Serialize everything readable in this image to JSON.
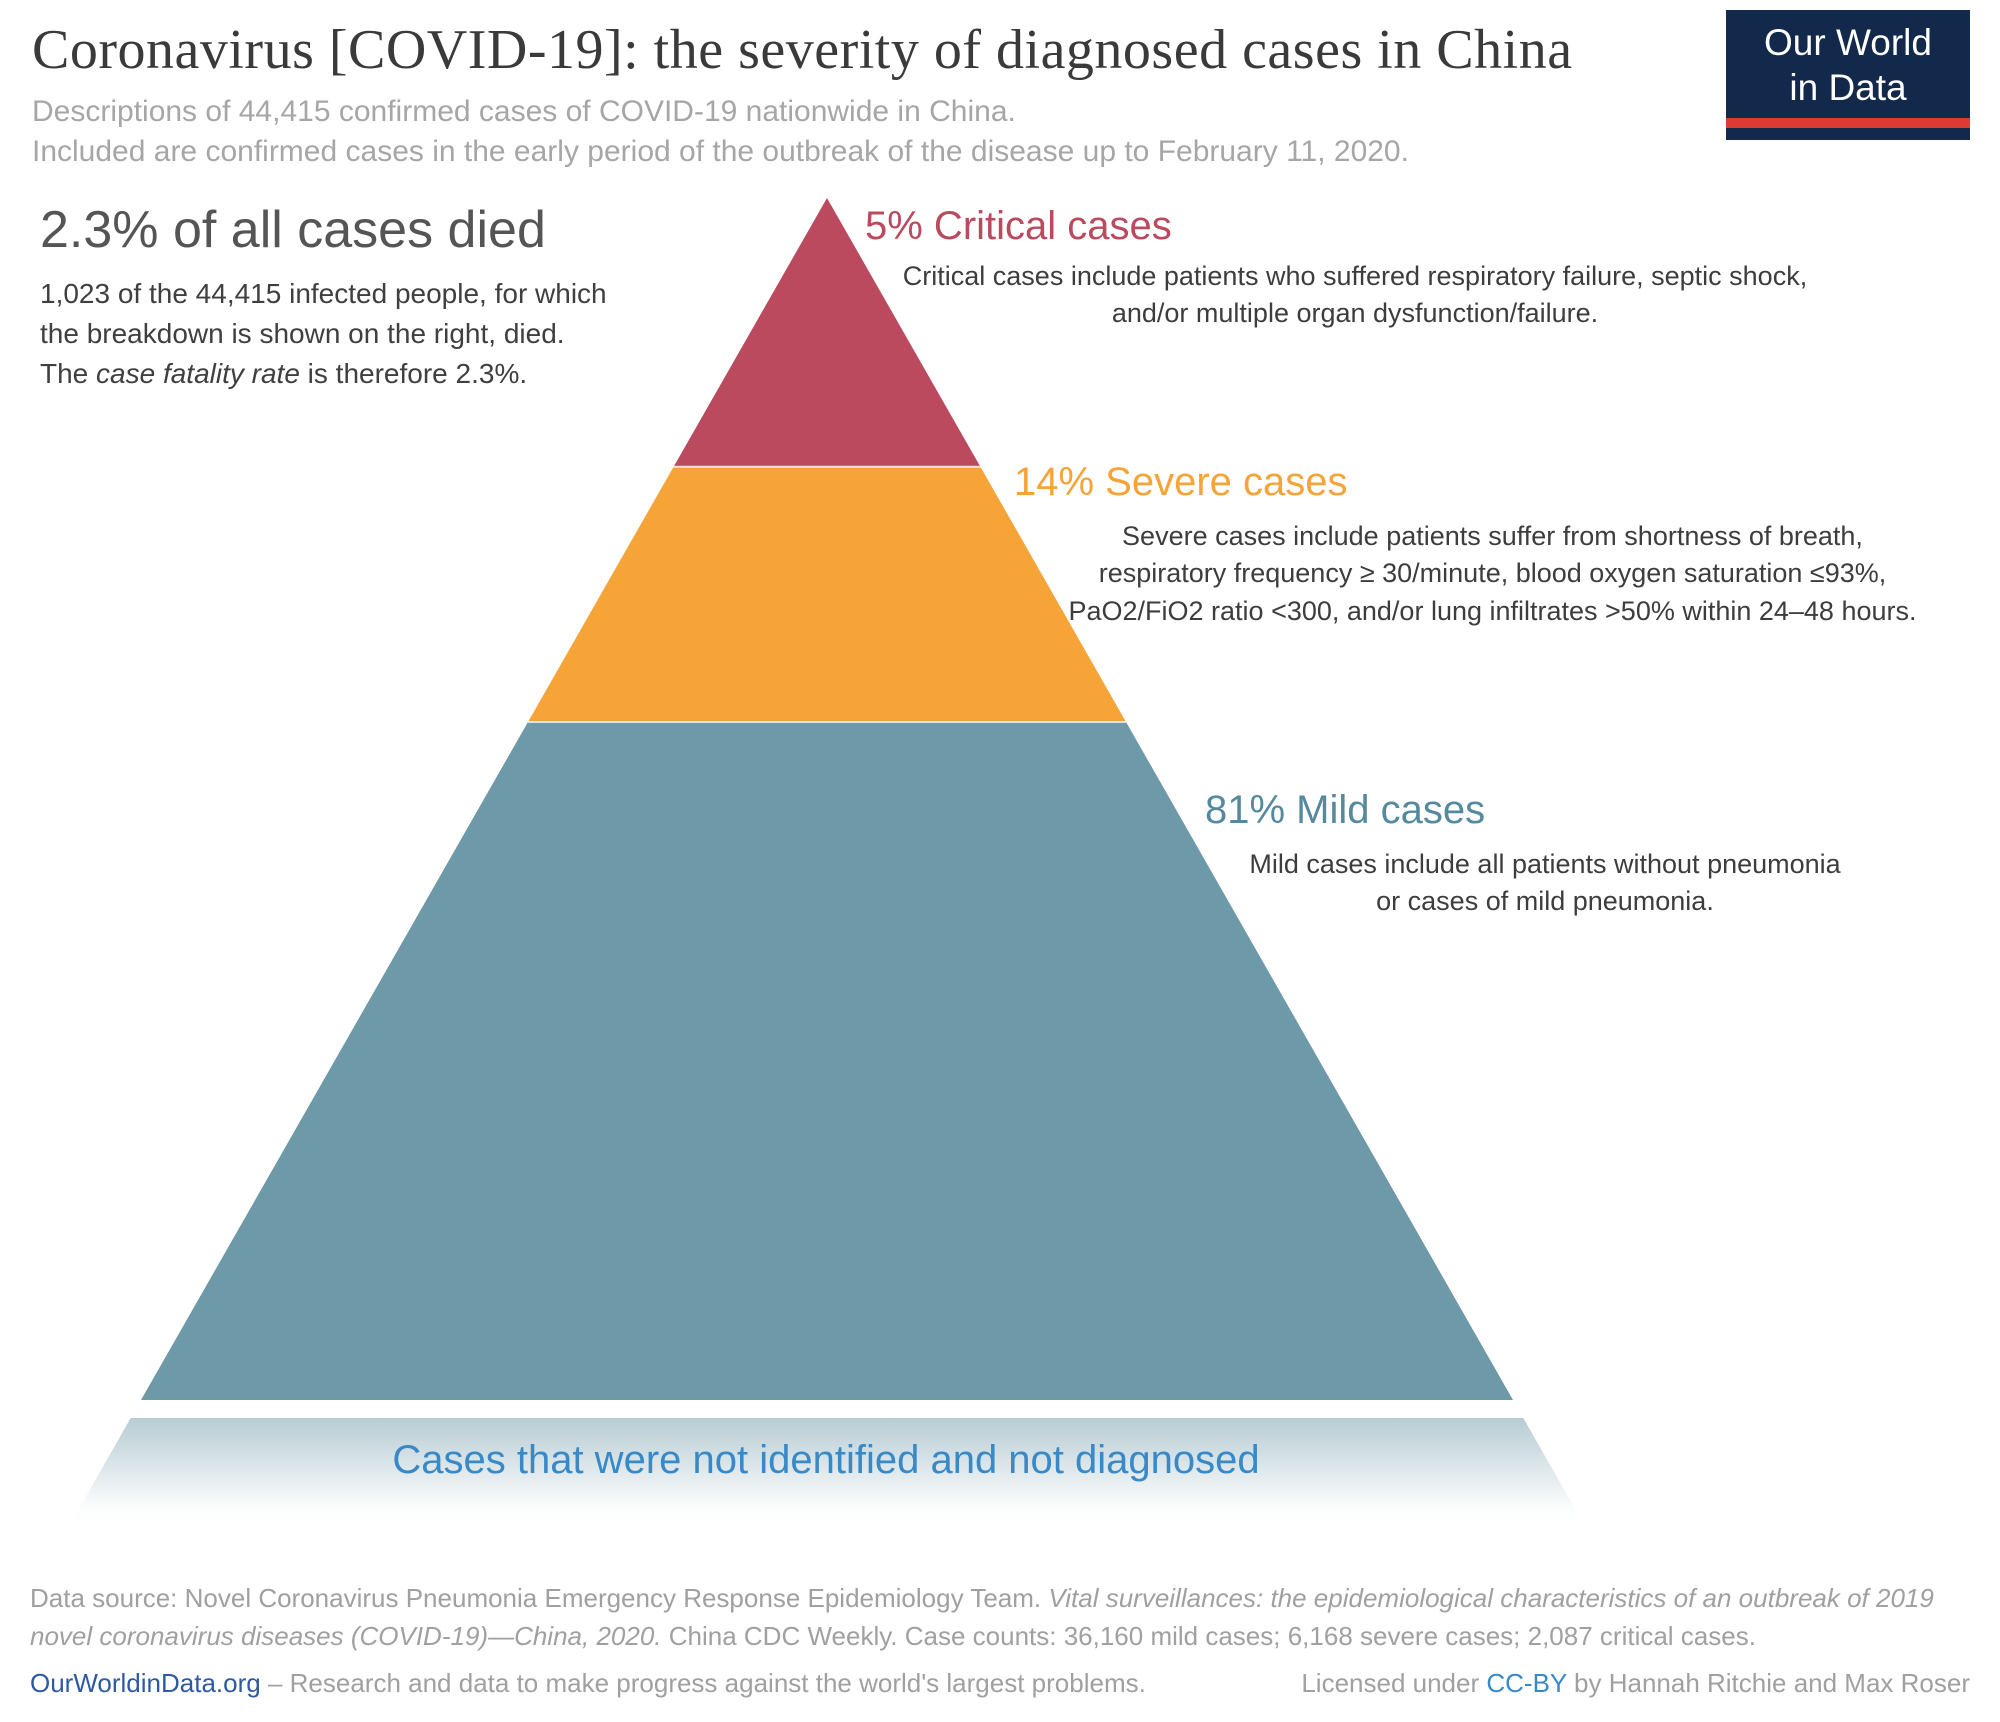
{
  "header": {
    "title": "Coronavirus [COVID-19]: the severity of diagnosed cases in China",
    "subtitle_line1": "Descriptions of 44,415 confirmed cases of COVID-19 nationwide in China.",
    "subtitle_line2": "Included are confirmed cases in the early period of the outbreak of the disease up to February 11, 2020."
  },
  "logo": {
    "line1": "Our World",
    "line2": "in Data",
    "bg_color": "#12294b",
    "stripe_color": "#dc3a32"
  },
  "left_note": {
    "heading": "2.3% of all cases died",
    "body_pre": "1,023 of the 44,415 infected people, for which\nthe breakdown is shown on the right, died.\nThe ",
    "body_italic": "case fatality rate",
    "body_post": " is therefore 2.3%."
  },
  "chart_data": {
    "type": "pyramid",
    "title": "Coronavirus [COVID-19]: the severity of diagnosed cases in China",
    "total_cases": 44415,
    "deaths": 1023,
    "case_fatality_rate_percent": 2.3,
    "segments": [
      {
        "key": "critical",
        "label": "5% Critical cases",
        "percent": 5,
        "cases": 2087,
        "color": "#bb4a5f",
        "label_color": "#bb4a5f",
        "description": "Critical cases include patients who suffered respiratory failure, septic shock,\nand/or multiple organ dysfunction/failure."
      },
      {
        "key": "severe",
        "label": "14% Severe cases",
        "percent": 14,
        "cases": 6168,
        "color": "#f6a338",
        "label_color": "#f6a338",
        "description": "Severe cases include patients suffer from shortness of breath,\nrespiratory frequency ≥ 30/minute, blood oxygen saturation ≤93%,\nPaO2/FiO2 ratio <300, and/or lung infiltrates >50% within 24–48 hours."
      },
      {
        "key": "mild",
        "label": "81% Mild cases",
        "percent": 81,
        "cases": 36160,
        "color": "#6e99a8",
        "label_color": "#55899e",
        "description": "Mild cases include all patients without pneumonia\nor cases of mild pneumonia."
      }
    ],
    "undiagnosed": {
      "label": "Cases that were not identified and not diagnosed",
      "label_color": "#3789c8",
      "fade_color": "#6e99a8"
    }
  },
  "footer": {
    "source_pre": "Data source: Novel Coronavirus Pneumonia Emergency Response Epidemiology Team. ",
    "source_italic": "Vital surveillances: the epidemiological characteristics of an outbreak of 2019 novel coronavirus diseases (COVID-19)—China, 2020.",
    "source_post": " China CDC Weekly. Case counts: 36,160 mild cases; 6,168 severe cases; 2,087 critical cases.",
    "site_link": "OurWorldinData.org",
    "site_tagline": " – Research and data to make progress against the world's largest problems.",
    "license_pre": "Licensed under ",
    "license_link": "CC-BY",
    "license_post": " by Hannah Ritchie and Max Roser"
  }
}
